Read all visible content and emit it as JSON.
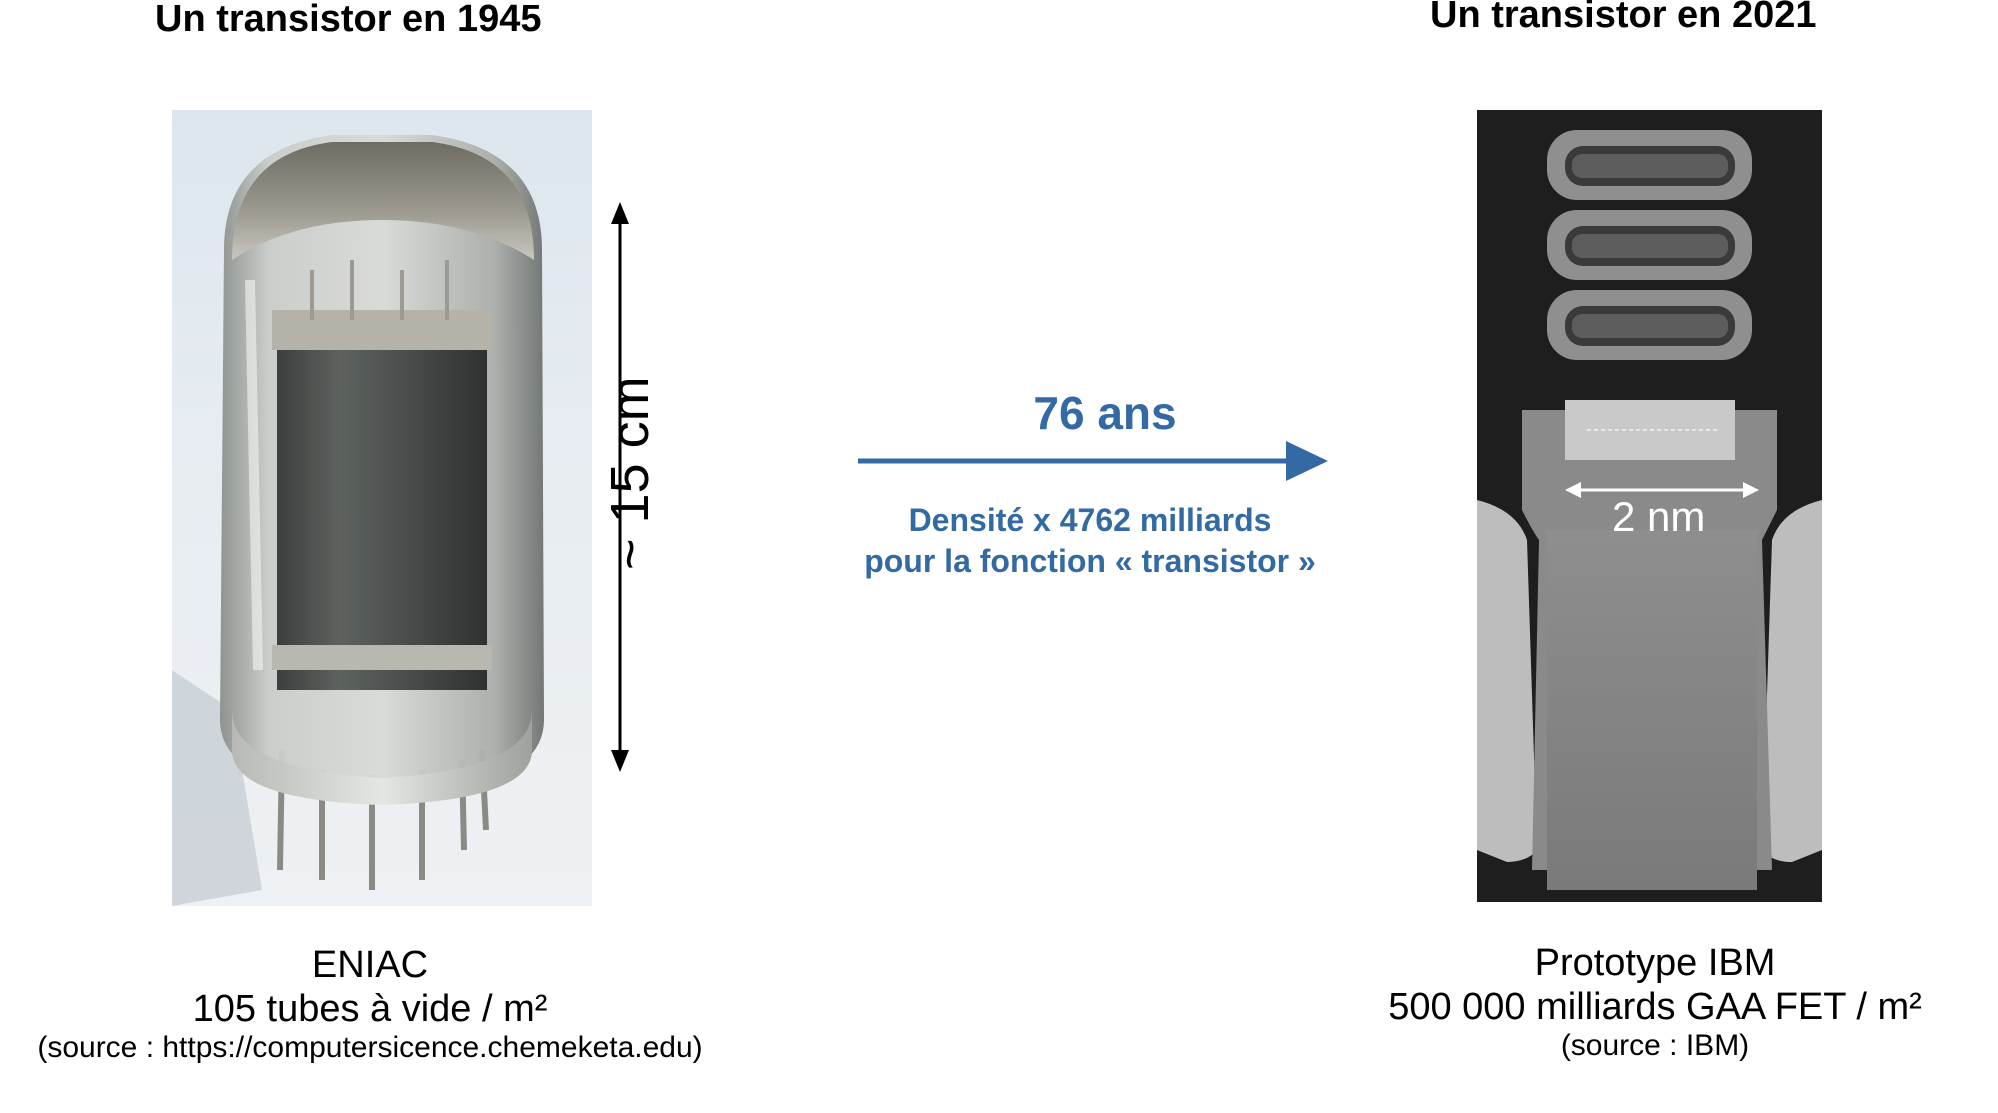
{
  "left": {
    "title": "Un transistor en 1945",
    "caption_line1": "ENIAC",
    "caption_line2": "105 tubes à vide / m²",
    "caption_source": "(source : https://computersicence.chemeketa.edu)",
    "dimension_label": "~ 15 cm"
  },
  "right": {
    "title": "Un transistor en 2021",
    "caption_line1": "Prototype IBM",
    "caption_line2": "500 000 milliards GAA FET / m²",
    "caption_source": "(source : IBM)",
    "scale_label": "2 nm"
  },
  "middle": {
    "years": "76 ans",
    "density_line1": "Densité x 4762 milliards",
    "density_line2": "pour la fonction « transistor »"
  },
  "colors": {
    "accent": "#336aa3",
    "text": "#000000"
  }
}
